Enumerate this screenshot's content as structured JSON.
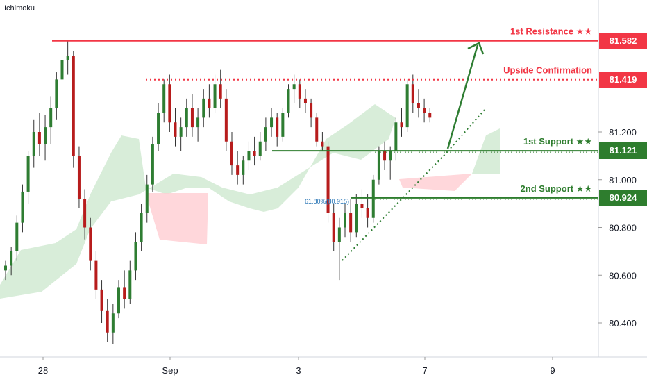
{
  "indicator": "Ichimoku",
  "colors": {
    "up": "#2e7d32",
    "down": "#b71c1c",
    "resistance": "#f23645",
    "support": "#2e7d2e",
    "cloud_bull": "#c8e6c9",
    "cloud_bear": "#ffcdd2"
  },
  "chart_data": {
    "type": "candlestick",
    "title": "",
    "xlabel": "",
    "ylabel": "",
    "ylim": [
      80.24,
      81.74
    ],
    "grid": false,
    "y_ticks": [
      "81.200",
      "81.000",
      "80.800",
      "80.600",
      "80.400"
    ],
    "x_ticks": [
      "28",
      "Sep",
      "3",
      "7",
      "9"
    ],
    "levels": [
      {
        "label": "1st Resistance ★★",
        "value": "81.582",
        "style": "solid",
        "color": "resistance"
      },
      {
        "label": "Upside Confirmation",
        "value": "81.419",
        "style": "dotted",
        "color": "resistance"
      },
      {
        "label": "1st Support ★★",
        "value": "81.121",
        "style": "solid",
        "color": "support"
      },
      {
        "label": "2nd Support ★★",
        "value": "80.924",
        "style": "solid",
        "color": "support"
      }
    ],
    "fib_label": "61.80%(80.915)",
    "candles": [
      [
        80.62,
        80.66,
        80.58,
        80.64
      ],
      [
        80.64,
        80.72,
        80.6,
        80.7
      ],
      [
        80.7,
        80.85,
        80.66,
        80.82
      ],
      [
        80.82,
        80.98,
        80.78,
        80.95
      ],
      [
        80.95,
        81.12,
        80.9,
        81.1
      ],
      [
        81.1,
        81.25,
        81.05,
        81.2
      ],
      [
        81.2,
        81.28,
        81.1,
        81.15
      ],
      [
        81.15,
        81.27,
        81.08,
        81.22
      ],
      [
        81.22,
        81.35,
        81.15,
        81.3
      ],
      [
        81.3,
        81.45,
        81.25,
        81.42
      ],
      [
        81.42,
        81.55,
        81.38,
        81.5
      ],
      [
        81.5,
        81.58,
        81.44,
        81.52
      ],
      [
        81.52,
        81.54,
        81.05,
        81.1
      ],
      [
        81.1,
        81.14,
        80.88,
        80.92
      ],
      [
        80.92,
        80.96,
        80.75,
        80.8
      ],
      [
        80.8,
        80.84,
        80.62,
        80.66
      ],
      [
        80.66,
        80.7,
        80.5,
        80.54
      ],
      [
        80.54,
        80.58,
        80.4,
        80.45
      ],
      [
        80.45,
        80.5,
        80.32,
        80.36
      ],
      [
        80.36,
        80.48,
        80.31,
        80.44
      ],
      [
        80.44,
        80.58,
        80.42,
        80.55
      ],
      [
        80.55,
        80.62,
        80.46,
        80.5
      ],
      [
        80.5,
        80.66,
        80.48,
        80.62
      ],
      [
        80.62,
        80.78,
        80.58,
        80.74
      ],
      [
        80.74,
        80.9,
        80.7,
        80.86
      ],
      [
        80.86,
        81.02,
        80.82,
        80.98
      ],
      [
        80.98,
        81.18,
        80.95,
        81.15
      ],
      [
        81.15,
        81.32,
        81.12,
        81.28
      ],
      [
        81.28,
        81.42,
        81.24,
        81.4
      ],
      [
        81.4,
        81.44,
        81.2,
        81.24
      ],
      [
        81.24,
        81.3,
        81.14,
        81.18
      ],
      [
        81.18,
        81.26,
        81.12,
        81.22
      ],
      [
        81.22,
        81.34,
        81.18,
        81.3
      ],
      [
        81.3,
        81.36,
        81.18,
        81.22
      ],
      [
        81.22,
        81.3,
        81.16,
        81.26
      ],
      [
        81.26,
        81.38,
        81.22,
        81.34
      ],
      [
        81.34,
        81.4,
        81.26,
        81.3
      ],
      [
        81.3,
        81.44,
        81.28,
        81.4
      ],
      [
        81.4,
        81.46,
        81.3,
        81.34
      ],
      [
        81.34,
        81.38,
        81.12,
        81.16
      ],
      [
        81.16,
        81.2,
        81.02,
        81.06
      ],
      [
        81.06,
        81.12,
        80.98,
        81.02
      ],
      [
        81.02,
        81.1,
        80.98,
        81.08
      ],
      [
        81.08,
        81.16,
        81.04,
        81.12
      ],
      [
        81.12,
        81.18,
        81.06,
        81.1
      ],
      [
        81.1,
        81.2,
        81.08,
        81.16
      ],
      [
        81.16,
        81.26,
        81.12,
        81.22
      ],
      [
        81.22,
        81.3,
        81.18,
        81.26
      ],
      [
        81.26,
        81.28,
        81.14,
        81.18
      ],
      [
        81.18,
        81.3,
        81.16,
        81.28
      ],
      [
        81.28,
        81.4,
        81.26,
        81.38
      ],
      [
        81.38,
        81.44,
        81.32,
        81.4
      ],
      [
        81.4,
        81.42,
        81.3,
        81.34
      ],
      [
        81.34,
        81.38,
        81.28,
        81.32
      ],
      [
        81.32,
        81.34,
        81.22,
        81.26
      ],
      [
        81.26,
        81.28,
        81.14,
        81.16
      ],
      [
        81.16,
        81.2,
        81.12,
        81.14
      ],
      [
        81.14,
        81.16,
        80.82,
        80.86
      ],
      [
        80.86,
        80.9,
        80.7,
        80.74
      ],
      [
        80.74,
        80.84,
        80.58,
        80.8
      ],
      [
        80.8,
        80.9,
        80.76,
        80.86
      ],
      [
        80.86,
        80.92,
        80.74,
        80.78
      ],
      [
        80.78,
        80.94,
        80.76,
        80.9
      ],
      [
        80.9,
        80.96,
        80.84,
        80.88
      ],
      [
        80.88,
        80.94,
        80.8,
        80.84
      ],
      [
        80.84,
        81.02,
        80.82,
        81.0
      ],
      [
        81.0,
        81.14,
        80.98,
        81.12
      ],
      [
        81.12,
        81.16,
        81.04,
        81.08
      ],
      [
        81.08,
        81.14,
        81.0,
        81.12
      ],
      [
        81.12,
        81.26,
        81.08,
        81.24
      ],
      [
        81.24,
        81.3,
        81.18,
        81.22
      ],
      [
        81.22,
        81.42,
        81.2,
        81.4
      ],
      [
        81.4,
        81.44,
        81.28,
        81.32
      ],
      [
        81.32,
        81.38,
        81.26,
        81.3
      ],
      [
        81.3,
        81.34,
        81.24,
        81.28
      ],
      [
        81.28,
        81.3,
        81.24,
        81.26
      ]
    ]
  }
}
